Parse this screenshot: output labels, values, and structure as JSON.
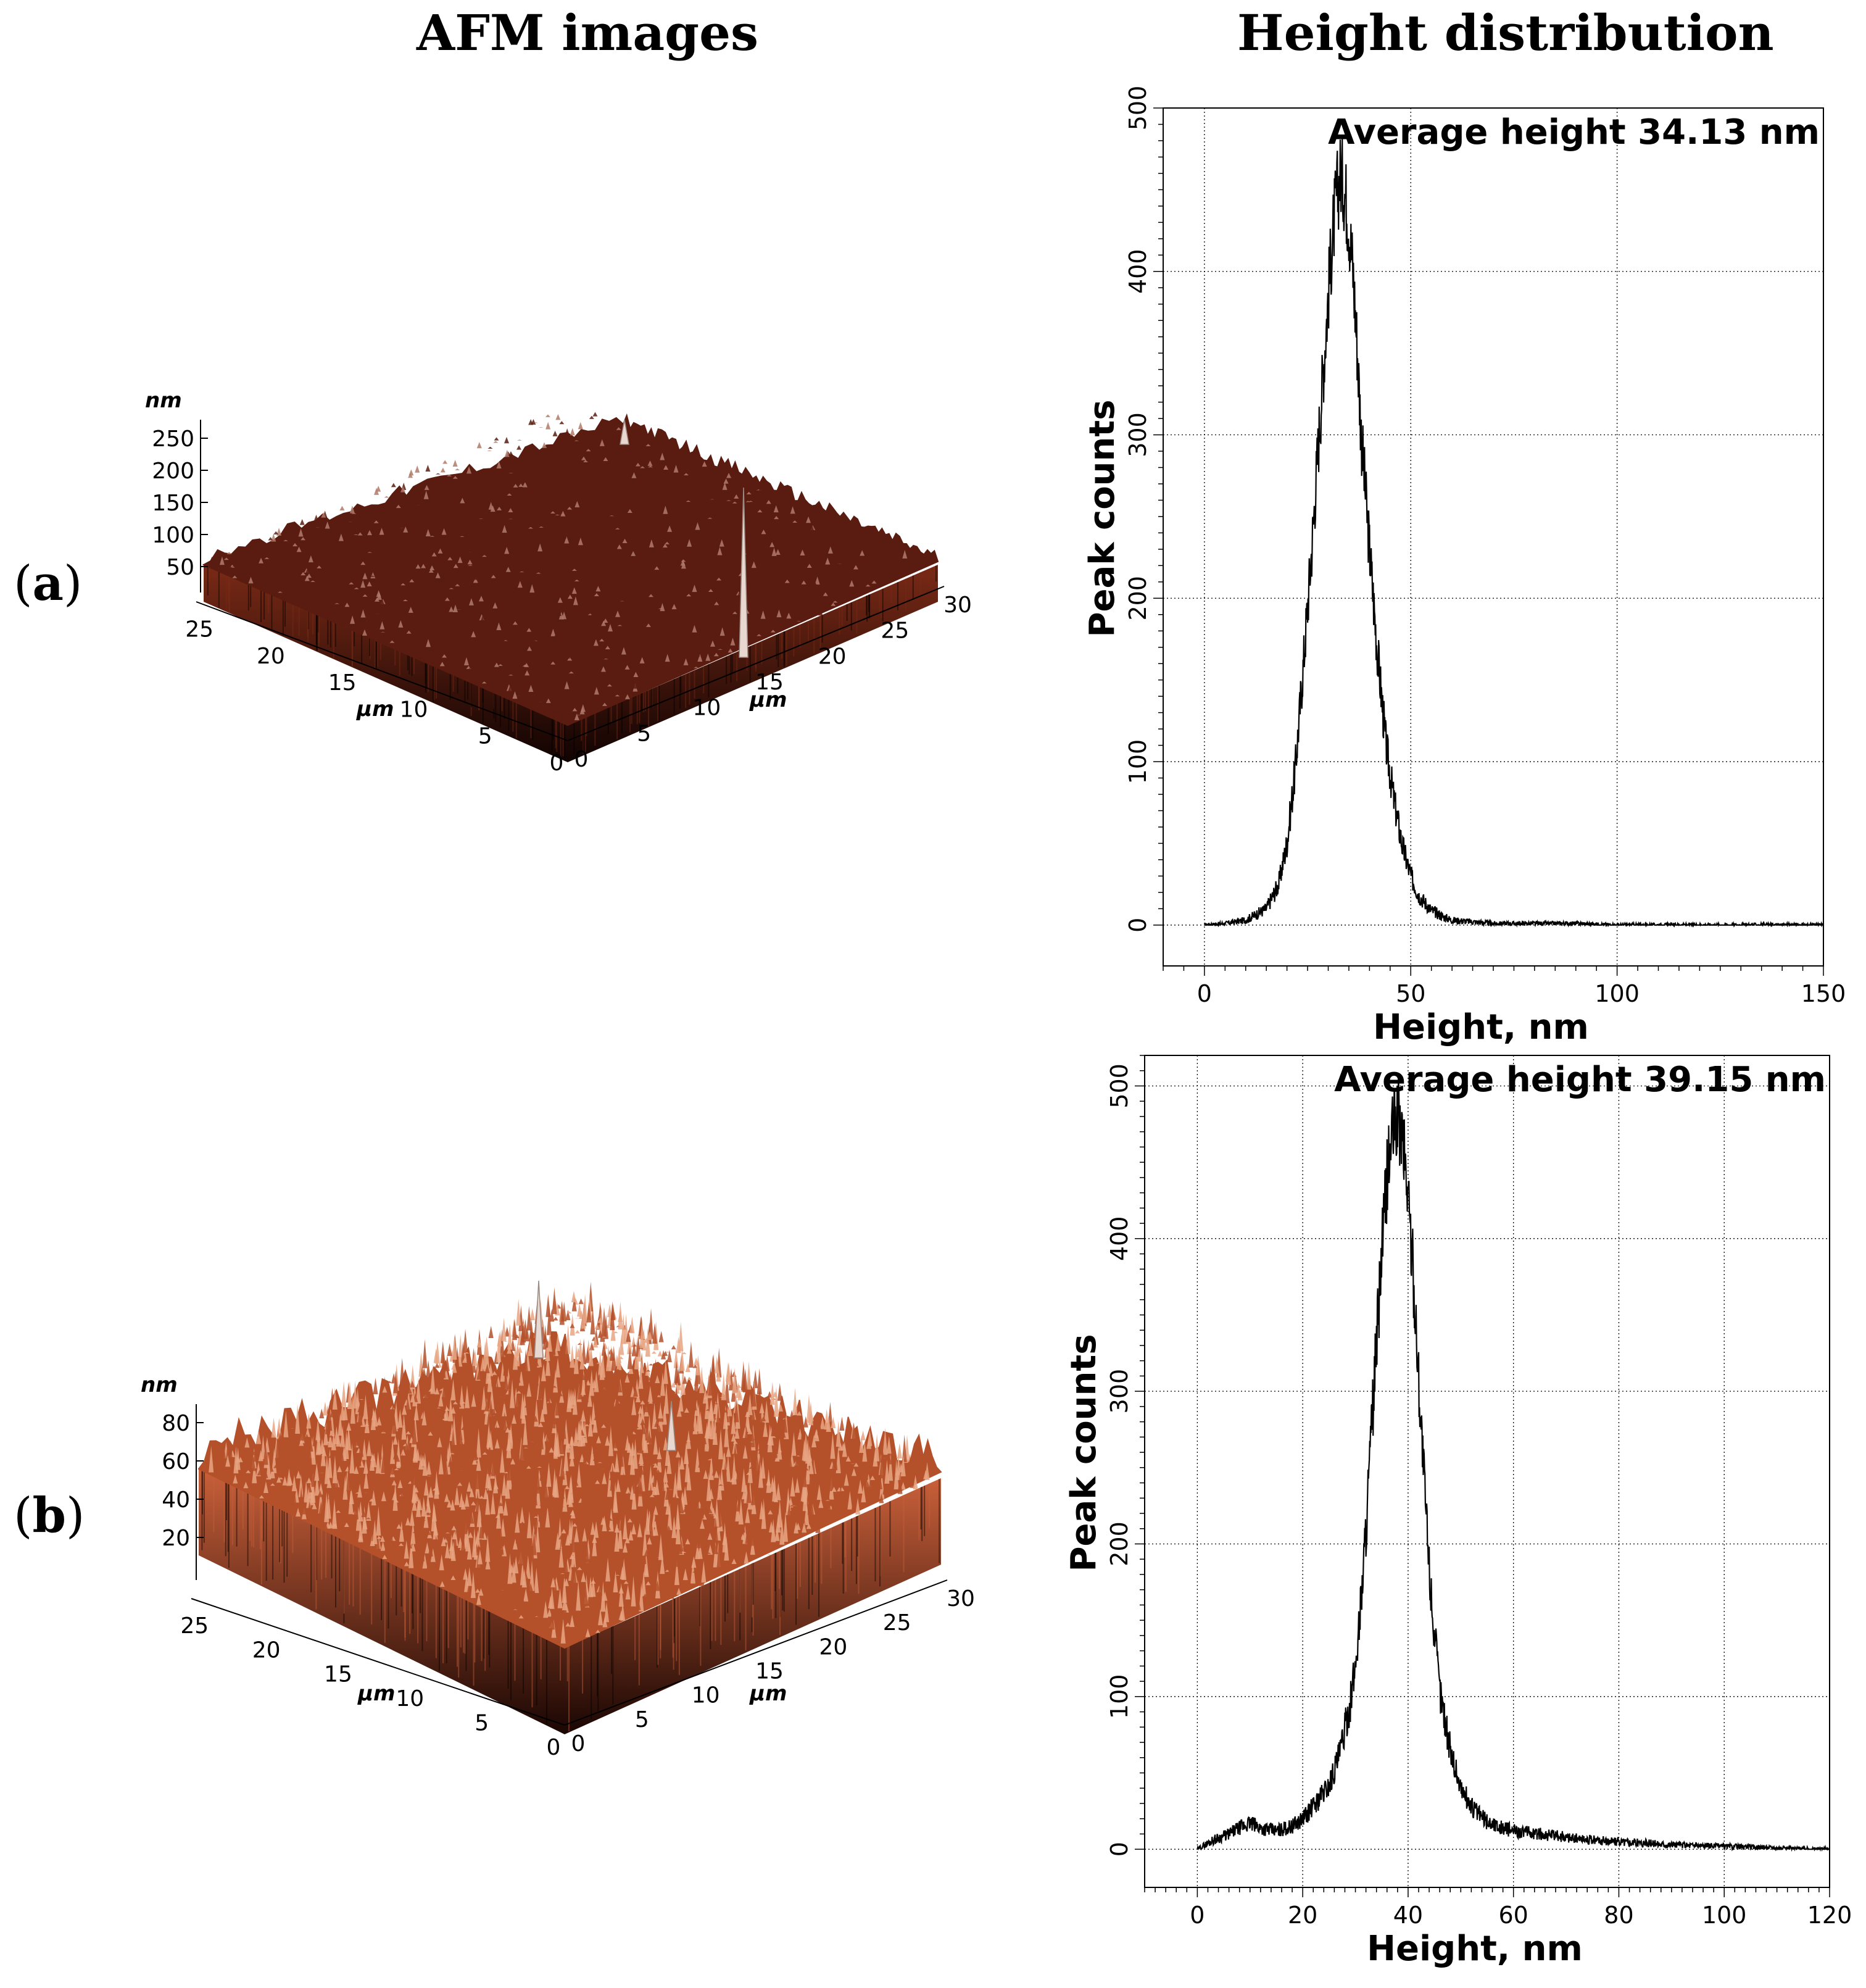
{
  "headers": {
    "left": "AFM images",
    "right": "Height distribution"
  },
  "panels": [
    {
      "id": "a",
      "open": "(",
      "letter": "a",
      "close": ")"
    },
    {
      "id": "b",
      "open": "(",
      "letter": "b",
      "close": ")"
    }
  ],
  "afm": [
    {
      "unit_z": "nm",
      "z_ticks": [
        "250",
        "200",
        "150",
        "100",
        "50"
      ],
      "unit_xy": "μm",
      "left_axis_ticks": [
        "25",
        "20",
        "15",
        "10",
        "5",
        "0"
      ],
      "right_axis_ticks": [
        "0",
        "5",
        "10",
        "15",
        "20",
        "25",
        "30"
      ],
      "colors": {
        "top": "#5a1c10",
        "speckle": "#b07a6a",
        "wall_top": "#7a2a16",
        "wall_bottom": "#100302"
      }
    },
    {
      "unit_z": "nm",
      "z_ticks": [
        "80",
        "60",
        "40",
        "20"
      ],
      "unit_xy": "μm",
      "left_axis_ticks": [
        "25",
        "20",
        "15",
        "10",
        "5",
        "0"
      ],
      "right_axis_ticks": [
        "0",
        "5",
        "10",
        "15",
        "20",
        "25",
        "30"
      ],
      "colors": {
        "top": "#b4502a",
        "speckle": "#e8a582",
        "wall_top": "#c9603a",
        "wall_bottom": "#1a0603"
      }
    }
  ],
  "chart_data": [
    {
      "type": "line",
      "title": "",
      "annotation": "Average height 34.13 nm",
      "xlabel": "Height, nm",
      "ylabel": "Peak counts",
      "xlim": [
        -10,
        150
      ],
      "ylim": [
        -25,
        500
      ],
      "xticks": [
        0,
        50,
        100,
        150
      ],
      "yticks": [
        0,
        100,
        200,
        300,
        400,
        500
      ],
      "grid": true,
      "x": [
        0,
        5,
        10,
        15,
        18,
        20,
        22,
        24,
        26,
        28,
        30,
        31,
        32,
        33,
        34,
        35,
        36,
        37,
        38,
        40,
        42,
        44,
        46,
        48,
        50,
        52,
        55,
        58,
        60,
        65,
        70,
        80,
        90,
        100,
        110,
        120,
        130,
        140,
        150
      ],
      "y": [
        0,
        1,
        3,
        10,
        25,
        50,
        95,
        160,
        230,
        310,
        385,
        420,
        445,
        460,
        450,
        430,
        400,
        355,
        300,
        230,
        165,
        110,
        75,
        48,
        30,
        18,
        9,
        5,
        3,
        2,
        1,
        1,
        1,
        0,
        0,
        0,
        0,
        0,
        0
      ]
    },
    {
      "type": "line",
      "title": "",
      "annotation": "Average height 39.15 nm",
      "xlabel": "Height, nm",
      "ylabel": "Peak counts",
      "xlim": [
        -10,
        120
      ],
      "ylim": [
        -25,
        520
      ],
      "xticks": [
        0,
        20,
        40,
        60,
        80,
        100,
        120
      ],
      "yticks": [
        0,
        100,
        200,
        300,
        400,
        500
      ],
      "grid": true,
      "x": [
        0,
        3,
        6,
        8,
        10,
        12,
        15,
        18,
        20,
        22,
        25,
        27,
        29,
        30,
        31,
        32,
        33,
        34,
        35,
        36,
        37,
        38,
        39,
        40,
        41,
        42,
        43,
        44,
        45,
        46,
        48,
        50,
        52,
        55,
        58,
        60,
        65,
        70,
        75,
        80,
        90,
        100,
        110,
        120
      ],
      "y": [
        0,
        6,
        10,
        14,
        17,
        14,
        12,
        15,
        20,
        28,
        42,
        62,
        95,
        120,
        160,
        210,
        270,
        330,
        390,
        440,
        470,
        480,
        465,
        430,
        375,
        310,
        245,
        185,
        140,
        105,
        65,
        40,
        28,
        18,
        14,
        12,
        10,
        8,
        6,
        5,
        3,
        2,
        1,
        0
      ]
    }
  ]
}
